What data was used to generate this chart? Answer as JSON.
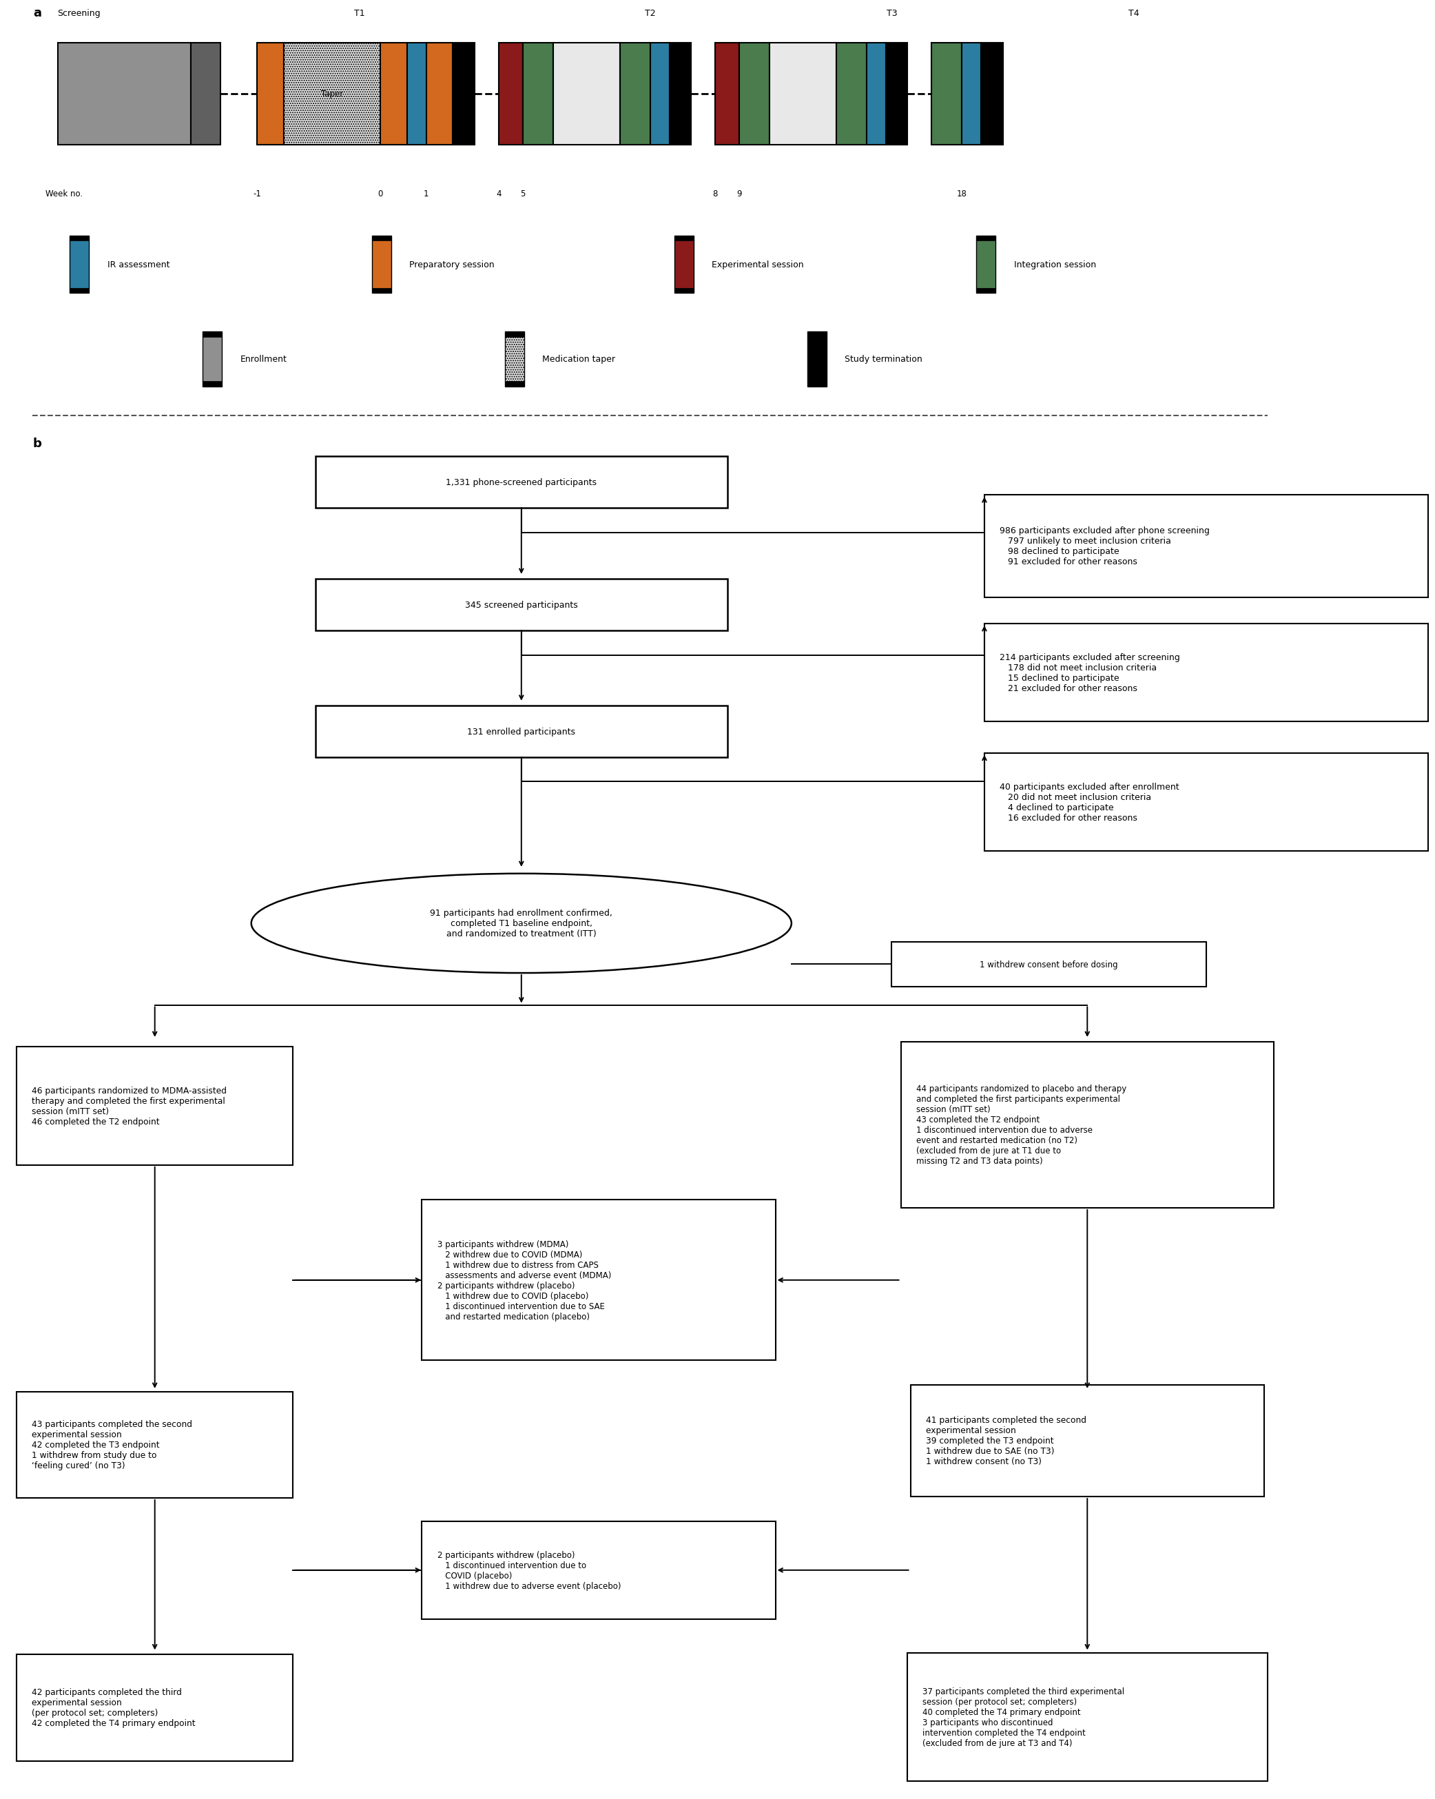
{
  "fig_width": 18.67,
  "fig_height": 26.18,
  "colors": {
    "ir_assessment": "#2B7EA1",
    "preparatory": "#D2691E",
    "experimental": "#8B1A1A",
    "integration": "#4A7C4E",
    "enrollment": "#909090",
    "enrollment_dark": "#606060",
    "taper_bg": "#E0E0E0",
    "segment_bg": "#E8E8E8",
    "termination": "#000000"
  }
}
